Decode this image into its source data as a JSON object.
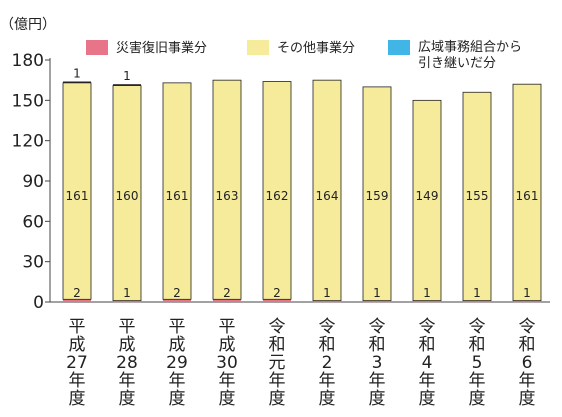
{
  "chart_data": {
    "type": "bar",
    "stacked": true,
    "unit_label": "（億円）",
    "ylim": [
      0,
      180
    ],
    "yticks": [
      0,
      30,
      60,
      90,
      120,
      150,
      180
    ],
    "grid": false,
    "legend_position": "top",
    "categories": [
      "平成27年度",
      "平成28年度",
      "平成29年度",
      "平成30年度",
      "令和元年度",
      "令和2年度",
      "令和3年度",
      "令和4年度",
      "令和5年度",
      "令和6年度"
    ],
    "category_labels": [
      [
        "平",
        "成",
        "27",
        "年",
        "度"
      ],
      [
        "平",
        "成",
        "28",
        "年",
        "度"
      ],
      [
        "平",
        "成",
        "29",
        "年",
        "度"
      ],
      [
        "平",
        "成",
        "30",
        "年",
        "度"
      ],
      [
        "令",
        "和",
        "元",
        "年",
        "度"
      ],
      [
        "令",
        "和",
        "2",
        "年",
        "度"
      ],
      [
        "令",
        "和",
        "3",
        "年",
        "度"
      ],
      [
        "令",
        "和",
        "4",
        "年",
        "度"
      ],
      [
        "令",
        "和",
        "5",
        "年",
        "度"
      ],
      [
        "令",
        "和",
        "6",
        "年",
        "度"
      ]
    ],
    "series": [
      {
        "name": "災害復旧事業分",
        "color": "#e8748a",
        "values": [
          2,
          1,
          2,
          2,
          2,
          1,
          1,
          1,
          1,
          1
        ],
        "labels": [
          "2",
          "1",
          "2",
          "2",
          "2",
          "1",
          "1",
          "1",
          "1",
          "1"
        ]
      },
      {
        "name": "その他事業分",
        "color": "#f5eb9b",
        "values": [
          161,
          160,
          161,
          163,
          162,
          164,
          159,
          149,
          155,
          161
        ],
        "labels": [
          "161",
          "160",
          "161",
          "163",
          "162",
          "164",
          "159",
          "149",
          "155",
          "161"
        ]
      },
      {
        "name": "広域事務組合から引き継いだ分",
        "legend_lines": [
          "広域事務組合から",
          "引き継いだ分"
        ],
        "color": "#41b6e6",
        "values": [
          1,
          1,
          0,
          0,
          0,
          0,
          0,
          0,
          0,
          0
        ],
        "labels": [
          "1",
          "1",
          "",
          "",
          "",
          "",
          "",
          "",
          "",
          ""
        ]
      }
    ]
  }
}
